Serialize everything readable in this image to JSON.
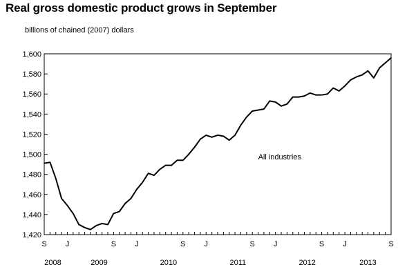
{
  "chart_data": {
    "type": "line",
    "title": "Real gross domestic product grows in September",
    "ylabel": "billions of chained (2007) dollars",
    "xlabel": "",
    "ylim": [
      1420,
      1600
    ],
    "yticks": [
      1420,
      1440,
      1460,
      1480,
      1500,
      1520,
      1540,
      1560,
      1580,
      1600
    ],
    "ytick_labels": [
      "1,420",
      "1,440",
      "1,460",
      "1,480",
      "1,500",
      "1,520",
      "1,540",
      "1,560",
      "1,580",
      "1,600"
    ],
    "grid": false,
    "x": [
      "2008-09",
      "2008-10",
      "2008-11",
      "2008-12",
      "2009-01",
      "2009-02",
      "2009-03",
      "2009-04",
      "2009-05",
      "2009-06",
      "2009-07",
      "2009-08",
      "2009-09",
      "2009-10",
      "2009-11",
      "2009-12",
      "2010-01",
      "2010-02",
      "2010-03",
      "2010-04",
      "2010-05",
      "2010-06",
      "2010-07",
      "2010-08",
      "2010-09",
      "2010-10",
      "2010-11",
      "2010-12",
      "2011-01",
      "2011-02",
      "2011-03",
      "2011-04",
      "2011-05",
      "2011-06",
      "2011-07",
      "2011-08",
      "2011-09",
      "2011-10",
      "2011-11",
      "2011-12",
      "2012-01",
      "2012-02",
      "2012-03",
      "2012-04",
      "2012-05",
      "2012-06",
      "2012-07",
      "2012-08",
      "2012-09",
      "2012-10",
      "2012-11",
      "2012-12",
      "2013-01",
      "2013-02",
      "2013-03",
      "2013-04",
      "2013-05",
      "2013-06",
      "2013-07",
      "2013-08",
      "2013-09"
    ],
    "series": [
      {
        "name": "All industries",
        "values": [
          1491,
          1492,
          1476,
          1456,
          1449,
          1441,
          1430,
          1427,
          1425,
          1429,
          1431,
          1430,
          1441,
          1443,
          1451,
          1456,
          1465,
          1472,
          1481,
          1479,
          1485,
          1489,
          1489,
          1494,
          1494,
          1500,
          1507,
          1515,
          1519,
          1517,
          1519,
          1518,
          1514,
          1519,
          1529,
          1537,
          1543,
          1544,
          1545,
          1553,
          1552,
          1548,
          1550,
          1557,
          1557,
          1558,
          1561,
          1559,
          1559,
          1560,
          1566,
          1563,
          1568,
          1574,
          1577,
          1579,
          1583,
          1576,
          1586,
          1591,
          1596
        ]
      }
    ],
    "x_tick_labels": [
      {
        "month": "S",
        "date": "2008-09"
      },
      {
        "month": "J",
        "date": "2009-01"
      },
      {
        "month": "S",
        "date": "2009-09"
      },
      {
        "month": "J",
        "date": "2010-01"
      },
      {
        "month": "S",
        "date": "2010-09"
      },
      {
        "month": "J",
        "date": "2011-01"
      },
      {
        "month": "S",
        "date": "2011-09"
      },
      {
        "month": "J",
        "date": "2012-01"
      },
      {
        "month": "S",
        "date": "2012-09"
      },
      {
        "month": "J",
        "date": "2013-01"
      },
      {
        "month": "S",
        "date": "2013-09"
      }
    ],
    "year_labels": [
      {
        "label": "2008",
        "date": "2008-09"
      },
      {
        "label": "2009",
        "date": "2009-01"
      },
      {
        "label": "2010",
        "date": "2010-01"
      },
      {
        "label": "2011",
        "date": "2011-01"
      },
      {
        "label": "2012",
        "date": "2012-01"
      },
      {
        "label": "2013",
        "date": "2013-01"
      }
    ],
    "annotation": {
      "text": "All industries"
    },
    "line_color": "#000000"
  }
}
